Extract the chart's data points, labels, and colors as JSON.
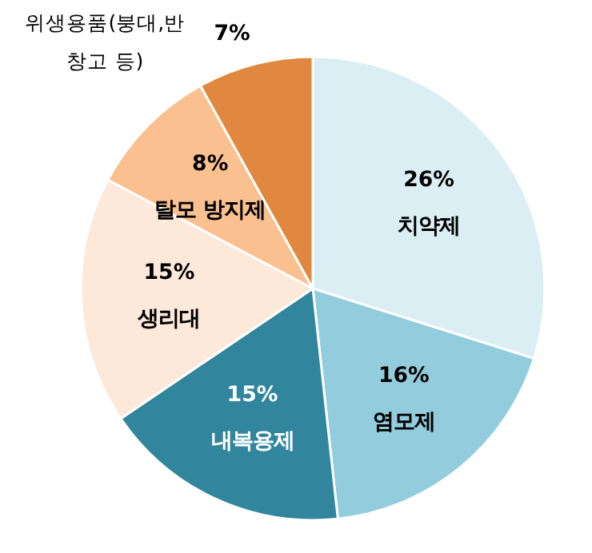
{
  "chart_data": {
    "type": "pie",
    "categories": [
      "치약제",
      "염모제",
      "내복용제",
      "생리대",
      "탈모 방지제",
      "위생용품(붕대,반창고 등)"
    ],
    "values": [
      26,
      16,
      15,
      15,
      8,
      7
    ],
    "value_labels": [
      "26%",
      "16%",
      "15%",
      "15%",
      "8%",
      "7%"
    ],
    "colors": [
      "#daeef3",
      "#93cddd",
      "#31859c",
      "#fde9d9",
      "#fac08f",
      "#e0883f"
    ],
    "legend": false
  }
}
